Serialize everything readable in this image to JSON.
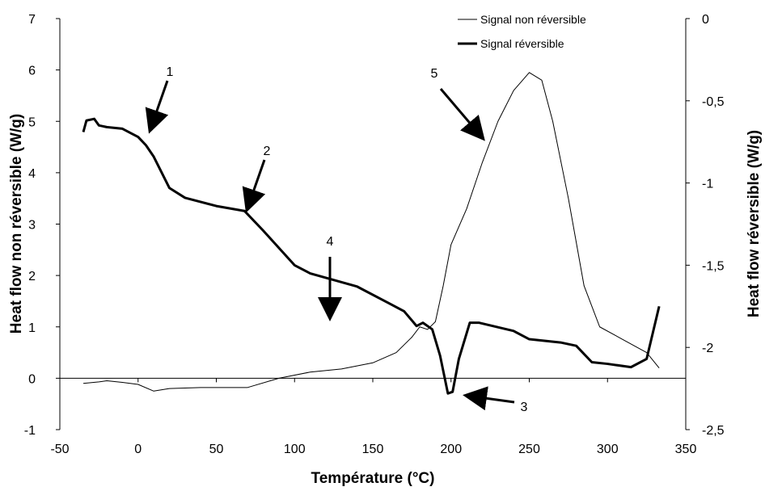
{
  "chart_data": {
    "type": "line",
    "x_label": "Température (°C)",
    "y_label": "Heat flow non réversible (W/g)",
    "y2_label": "Heat flow réversible (W/g)",
    "xlim": [
      -50,
      350
    ],
    "xticks": [
      -50,
      0,
      50,
      100,
      150,
      200,
      250,
      300,
      350
    ],
    "ylim": [
      -1,
      7
    ],
    "yticks": [
      -1,
      0,
      1,
      2,
      3,
      4,
      5,
      6,
      7
    ],
    "y2lim": [
      -2.5,
      0
    ],
    "y2ticks": [
      {
        "value": -2.5,
        "label": "-2,5"
      },
      {
        "value": -2,
        "label": "-2"
      },
      {
        "value": -1.5,
        "label": "-1,5"
      },
      {
        "value": -1,
        "label": "-1"
      },
      {
        "value": -0.5,
        "label": "-0,5"
      },
      0
    ],
    "series": [
      {
        "name": "Signal non réversible",
        "color": "#000000",
        "width": 1,
        "x": [
          -35,
          -25,
          -20,
          -10,
          0,
          10,
          20,
          40,
          70,
          90,
          110,
          130,
          150,
          165,
          175,
          180,
          185,
          190,
          195,
          200,
          210,
          220,
          230,
          240,
          250,
          258,
          265,
          275,
          285,
          295,
          310,
          325,
          333
        ],
        "values": [
          -0.1,
          -0.07,
          -0.05,
          -0.08,
          -0.12,
          -0.25,
          -0.2,
          -0.18,
          -0.18,
          0.0,
          0.12,
          0.18,
          0.3,
          0.5,
          0.8,
          1.0,
          0.95,
          1.1,
          1.8,
          2.6,
          3.3,
          4.2,
          5.0,
          5.6,
          5.95,
          5.8,
          5.0,
          3.5,
          1.8,
          1.0,
          0.75,
          0.5,
          0.2
        ]
      },
      {
        "name": "Signal réversible",
        "color": "#000000",
        "width": 3,
        "axis": "y2",
        "x": [
          -35,
          -33,
          -28,
          -25,
          -20,
          -10,
          0,
          5,
          10,
          20,
          30,
          50,
          68,
          80,
          100,
          110,
          140,
          160,
          170,
          178,
          182,
          188,
          193,
          198,
          201,
          205,
          212,
          218,
          240,
          250,
          270,
          280,
          290,
          300,
          315,
          325,
          333
        ],
        "values": [
          -0.69,
          -0.62,
          -0.61,
          -0.65,
          -0.66,
          -0.67,
          -0.72,
          -0.77,
          -0.84,
          -1.03,
          -1.09,
          -1.14,
          -1.17,
          -1.29,
          -1.5,
          -1.55,
          -1.63,
          -1.73,
          -1.78,
          -1.87,
          -1.85,
          -1.89,
          -2.05,
          -2.28,
          -2.27,
          -2.07,
          -1.85,
          -1.85,
          -1.9,
          -1.95,
          -1.97,
          -1.99,
          -2.09,
          -2.1,
          -2.12,
          -2.07,
          -1.75
        ]
      }
    ],
    "annotations": [
      "1",
      "2",
      "3",
      "4",
      "5"
    ]
  }
}
